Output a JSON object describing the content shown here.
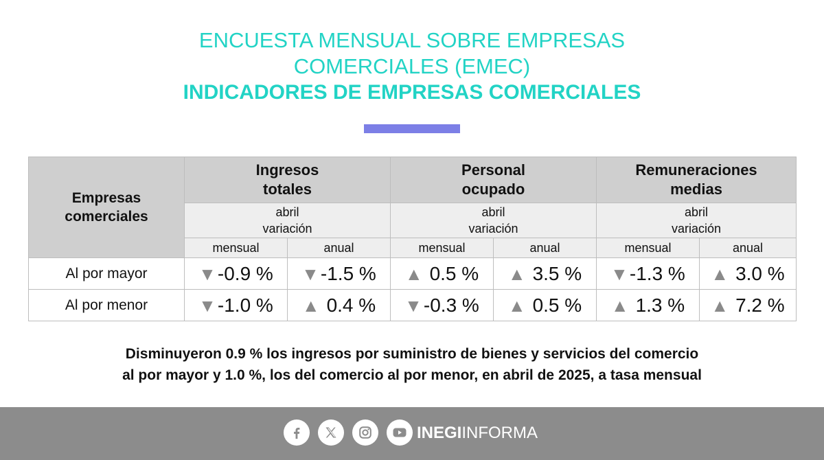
{
  "header": {
    "title_line1": "ENCUESTA MENSUAL SOBRE EMPRESAS",
    "title_line2": "COMERCIALES (EMEC)",
    "subtitle": "INDICADORES DE EMPRESAS COMERCIALES"
  },
  "colors": {
    "title": "#22d3c5",
    "accent_bar": "#7c7fe6",
    "header_bg": "#cfcfcf",
    "subheader_bg": "#eeeeee",
    "arrow": "#8a8a8a",
    "footer_bg": "#8c8c8c"
  },
  "table": {
    "corner_label_line1": "Empresas",
    "corner_label_line2": "comerciales",
    "groups": [
      {
        "line1": "Ingresos",
        "line2": "totales"
      },
      {
        "line1": "Personal",
        "line2": "ocupado"
      },
      {
        "line1": "Remuneraciones",
        "line2": "medias"
      }
    ],
    "period_line1": "abril",
    "period_line2": "variación",
    "subheads": [
      "mensual",
      "anual"
    ],
    "rows": [
      {
        "label": "Al por mayor",
        "cells": [
          {
            "dir": "down",
            "arrow": "▼",
            "text": "-0.9 %"
          },
          {
            "dir": "down",
            "arrow": "▼",
            "text": "-1.5 %"
          },
          {
            "dir": "up",
            "arrow": "▲",
            "text": "0.5 %"
          },
          {
            "dir": "up",
            "arrow": "▲",
            "text": "3.5 %"
          },
          {
            "dir": "down",
            "arrow": "▼",
            "text": "-1.3 %"
          },
          {
            "dir": "up",
            "arrow": "▲",
            "text": "3.0 %"
          }
        ]
      },
      {
        "label": "Al por menor",
        "cells": [
          {
            "dir": "down",
            "arrow": "▼",
            "text": "-1.0 %"
          },
          {
            "dir": "up",
            "arrow": "▲",
            "text": "0.4 %"
          },
          {
            "dir": "down",
            "arrow": "▼",
            "text": "-0.3 %"
          },
          {
            "dir": "up",
            "arrow": "▲",
            "text": "0.5 %"
          },
          {
            "dir": "up",
            "arrow": "▲",
            "text": "1.3 %"
          },
          {
            "dir": "up",
            "arrow": "▲",
            "text": "7.2 %"
          }
        ]
      }
    ]
  },
  "footnote": {
    "line1": "Disminuyeron 0.9 % los ingresos por suministro de bienes y servicios del comercio",
    "line2": "al por mayor y 1.0 %, los del comercio al por menor, en abril de 2025, a tasa mensual"
  },
  "footer": {
    "icons": [
      "facebook-icon",
      "x-icon",
      "instagram-icon",
      "youtube-icon"
    ],
    "brand_bold": "INEGI",
    "brand_regular": "INFORMA"
  }
}
